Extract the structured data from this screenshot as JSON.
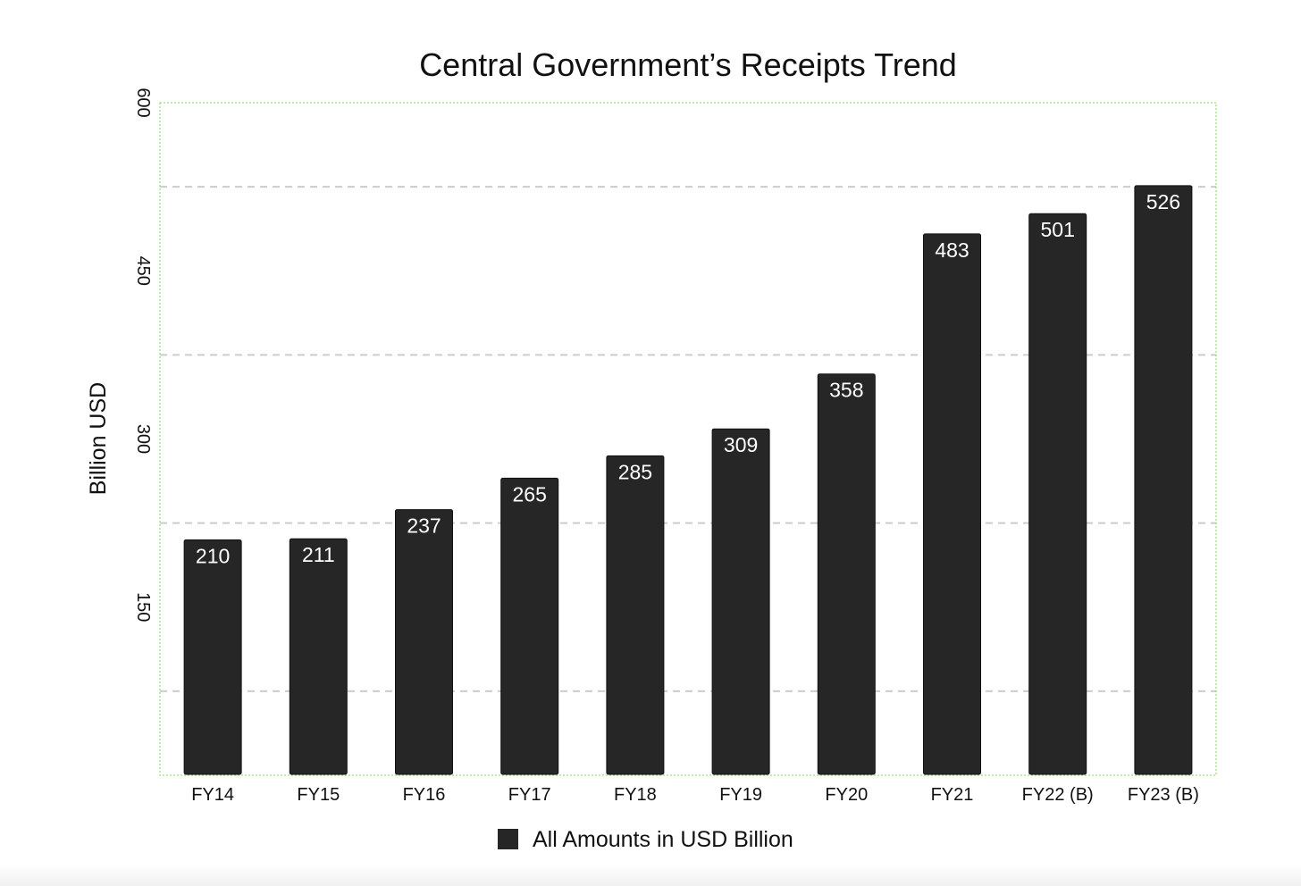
{
  "chart_data": {
    "type": "bar",
    "title": "Central Government’s Receipts Trend",
    "xlabel": "",
    "ylabel": "Billion USD",
    "categories": [
      "FY14",
      "FY15",
      "FY16",
      "FY17",
      "FY18",
      "FY19",
      "FY20",
      "FY21",
      "FY22 (B)",
      "FY23 (B)"
    ],
    "series": [
      {
        "name": "All Amounts in USD Billion",
        "values": [
          210,
          211,
          237,
          265,
          285,
          309,
          358,
          483,
          501,
          526
        ],
        "color": "#262626"
      }
    ],
    "ylim": [
      0,
      600
    ],
    "yticks": [
      150,
      300,
      450,
      600
    ],
    "ytick_labels": [
      "150",
      "300",
      "450",
      "600"
    ],
    "gridlines_at": [
      75,
      225,
      375,
      525
    ],
    "grid": true,
    "grid_style": "dashed",
    "grid_color": "#cccccc",
    "frame_color": "#7ed957",
    "data_labels": true,
    "legend_position": "bottom-center"
  }
}
